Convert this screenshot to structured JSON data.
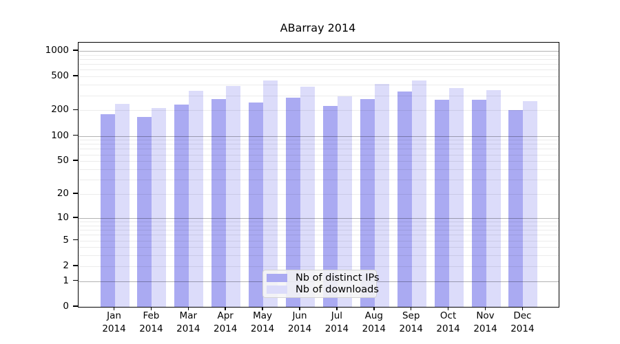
{
  "title": "ABarray 2014",
  "year_label": "2014",
  "legend": {
    "items": [
      {
        "label": "Nb of distinct IPs",
        "color": "#aaaaf2"
      },
      {
        "label": "Nb of downloads",
        "color": "#dcdcfa"
      }
    ]
  },
  "chart_data": {
    "type": "bar",
    "title": "ABarray 2014",
    "categories": [
      "Jan",
      "Feb",
      "Mar",
      "Apr",
      "May",
      "Jun",
      "Jul",
      "Aug",
      "Sep",
      "Oct",
      "Nov",
      "Dec"
    ],
    "category_year": "2014",
    "series": [
      {
        "name": "Nb of distinct IPs",
        "color": "#aaaaf2",
        "values": [
          180,
          167,
          235,
          273,
          246,
          282,
          224,
          270,
          331,
          266,
          268,
          203
        ]
      },
      {
        "name": "Nb of downloads",
        "color": "#dcdcfa",
        "values": [
          237,
          213,
          340,
          389,
          451,
          382,
          293,
          411,
          446,
          368,
          346,
          258
        ]
      }
    ],
    "xlabel": "",
    "ylabel": "",
    "yscale": "log10(value+1)",
    "ylim": [
      0,
      1250
    ],
    "yticks": [
      1000,
      500,
      200,
      100,
      50,
      20,
      10,
      5,
      2,
      1,
      0
    ],
    "grid": "major lines at powers of 10, minor lines at 2-9 multiples, drawn over bars",
    "legend_position": "bottom-center inside plot"
  }
}
